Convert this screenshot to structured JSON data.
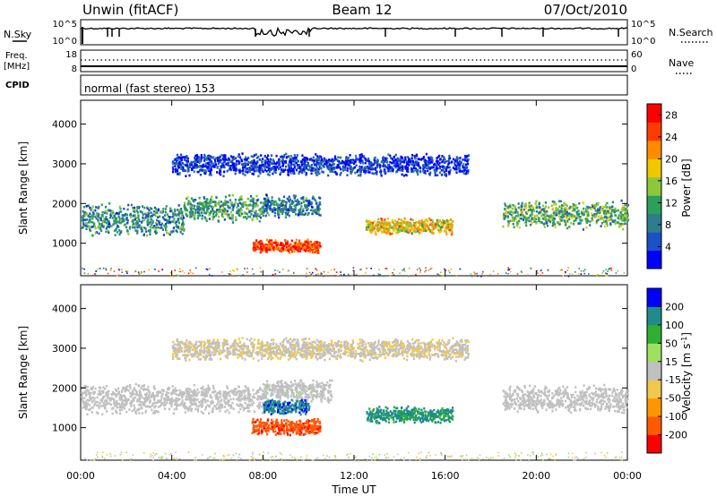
{
  "header": {
    "station": "Unwin (fitACF)",
    "beam": "Beam 12",
    "date": "07/Oct/2010"
  },
  "strips": {
    "nsky_label": "N.Sky",
    "nsky_tick_top": "10^5",
    "nsky_tick_bottom": "10^0",
    "nsearch_label": "N.Search",
    "nsearch_tick_top": "10^5",
    "nsearch_tick_bottom": "10^0",
    "freq_label_1": "Freq.",
    "freq_label_2": "[MHz]",
    "freq_tick_top": "18",
    "freq_tick_bottom": "8",
    "nave_label": "Nave",
    "nave_tick_top": "60",
    "nave_tick_bottom": "0",
    "cpid_label": "CPID",
    "cpid_value": "normal (fast stereo) 153"
  },
  "colors": {
    "power": [
      "#0000ff",
      "#1a50c8",
      "#2e7d8c",
      "#2aa05a",
      "#8cc83c",
      "#f0c800",
      "#ff8c00",
      "#ff3c00",
      "#ff0000"
    ],
    "velocity": [
      "#ff0000",
      "#ff5a00",
      "#ff9600",
      "#f0c850",
      "#c0c0c0",
      "#a0e060",
      "#30b030",
      "#1e8c8c",
      "#0000ff"
    ]
  },
  "chart_data": [
    {
      "type": "heatmap",
      "name": "power",
      "xlabel": "Time UT",
      "ylabel": "Slant Range [km]",
      "x_ticks": [
        "00:00",
        "04:00",
        "08:00",
        "12:00",
        "16:00",
        "20:00",
        "00:00"
      ],
      "y_ticks": [
        "1000",
        "2000",
        "3000",
        "4000"
      ],
      "xlim": [
        0,
        24
      ],
      "ylim": [
        180,
        4600
      ],
      "colorbar": {
        "label": "Power [dB]",
        "ticks": [
          "4",
          "8",
          "12",
          "16",
          "20",
          "24",
          "28"
        ],
        "range": [
          0,
          30
        ]
      },
      "regions": [
        {
          "t0": 0.0,
          "t1": 4.5,
          "r_center": 1620,
          "r_half": 420,
          "value": 9
        },
        {
          "t0": 4.5,
          "t1": 8.0,
          "r_center": 1900,
          "r_half": 360,
          "value": 11
        },
        {
          "t0": 8.0,
          "t1": 10.5,
          "r_center": 1950,
          "r_half": 300,
          "value": 8
        },
        {
          "t0": 7.5,
          "t1": 10.5,
          "r_center": 950,
          "r_half": 180,
          "value": 26
        },
        {
          "t0": 12.5,
          "t1": 16.3,
          "r_center": 1450,
          "r_half": 230,
          "value": 18
        },
        {
          "t0": 18.5,
          "t1": 24.0,
          "r_center": 1750,
          "r_half": 380,
          "value": 12
        },
        {
          "t0": 4.0,
          "t1": 17.0,
          "r_center": 3000,
          "r_half": 300,
          "value": 4
        }
      ]
    },
    {
      "type": "heatmap",
      "name": "velocity",
      "xlabel": "Time UT",
      "ylabel": "Slant Range [km]",
      "x_ticks": [
        "00:00",
        "04:00",
        "08:00",
        "12:00",
        "16:00",
        "20:00",
        "00:00"
      ],
      "y_ticks": [
        "1000",
        "2000",
        "3000",
        "4000"
      ],
      "xlim": [
        0,
        24
      ],
      "ylim": [
        180,
        4600
      ],
      "colorbar": {
        "label": "Velocity [m s^-1]",
        "ticks": [
          "200",
          "100",
          "50",
          "15",
          "-15",
          "-50",
          "-100",
          "-200"
        ],
        "range": [
          -250,
          250
        ]
      },
      "regions": [
        {
          "t0": 0.0,
          "t1": 8.0,
          "r_center": 1750,
          "r_half": 400,
          "value": 0
        },
        {
          "t0": 8.0,
          "t1": 11.0,
          "r_center": 1950,
          "r_half": 300,
          "value": 5
        },
        {
          "t0": 7.5,
          "t1": 10.5,
          "r_center": 1050,
          "r_half": 220,
          "value": -180
        },
        {
          "t0": 8.0,
          "t1": 10.0,
          "r_center": 1550,
          "r_half": 200,
          "value": 180
        },
        {
          "t0": 12.5,
          "t1": 16.3,
          "r_center": 1350,
          "r_half": 220,
          "value": 150
        },
        {
          "t0": 18.5,
          "t1": 24.0,
          "r_center": 1750,
          "r_half": 380,
          "value": 0
        },
        {
          "t0": 4.0,
          "t1": 17.0,
          "r_center": 3000,
          "r_half": 300,
          "value": -20
        }
      ]
    }
  ]
}
